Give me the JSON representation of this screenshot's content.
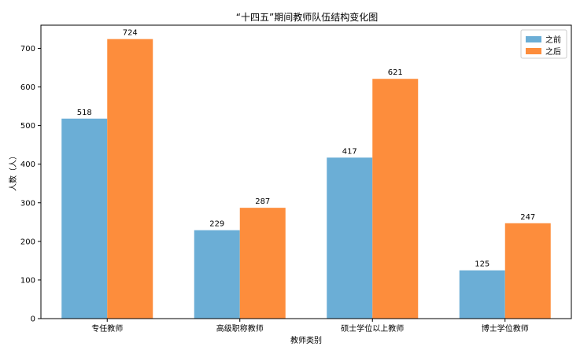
{
  "chart_data": {
    "type": "bar",
    "title": "“十四五”期间教师队伍结构变化图",
    "xlabel": "教师类别",
    "ylabel": "人数（人）",
    "categories": [
      "专任教师",
      "高级职称教师",
      "硕士学位以上教师",
      "博士学位教师"
    ],
    "series": [
      {
        "name": "之前",
        "values": [
          518,
          229,
          417,
          125
        ],
        "color": "#6baed6"
      },
      {
        "name": "之后",
        "values": [
          724,
          287,
          621,
          247
        ],
        "color": "#fd8d3c"
      }
    ],
    "ylim": [
      0,
      760
    ],
    "yticks": [
      0,
      100,
      200,
      300,
      400,
      500,
      600,
      700
    ],
    "legend_position": "top-right",
    "grid": false,
    "data_labels": true
  }
}
